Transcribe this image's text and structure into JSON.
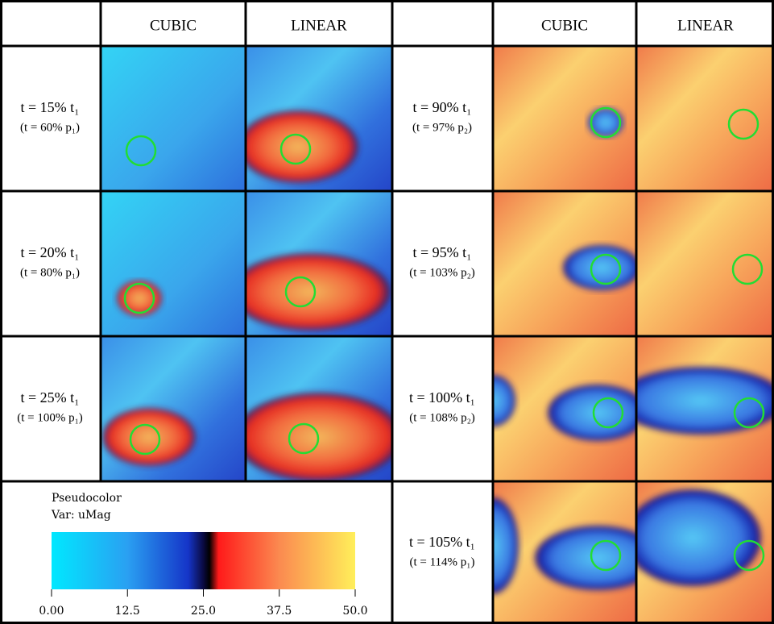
{
  "header": {
    "columns": [
      "CUBIC",
      "LINEAR",
      "CUBIC",
      "LINEAR"
    ]
  },
  "rows_left": [
    {
      "label": "t = 15% t₁",
      "sublabel": "(t = 60% p₁)"
    },
    {
      "label": "t = 20% t₁",
      "sublabel": "(t = 80% p₁)"
    },
    {
      "label": "t = 25% t₁",
      "sublabel": "(t = 100% p₁)"
    }
  ],
  "rows_right": [
    {
      "label": "t = 90% t₁",
      "sublabel": "(t = 97% p₂)"
    },
    {
      "label": "t = 95% t₁",
      "sublabel": "(t = 103% p₂)"
    },
    {
      "label": "t = 100% t₁",
      "sublabel": "(t = 108% p₂)"
    },
    {
      "label": "t = 105% t₁",
      "sublabel": "(t = 114% p₁)"
    }
  ],
  "legend": {
    "title": "Pseudocolor",
    "variable": "Var: uMag",
    "range": [
      0,
      50
    ],
    "ticks": [
      {
        "value": 0,
        "label": "0.00"
      },
      12.5,
      {
        "value": 25,
        "label": "25.0"
      },
      37.5,
      {
        "value": 50,
        "label": "50.0"
      }
    ]
  }
}
